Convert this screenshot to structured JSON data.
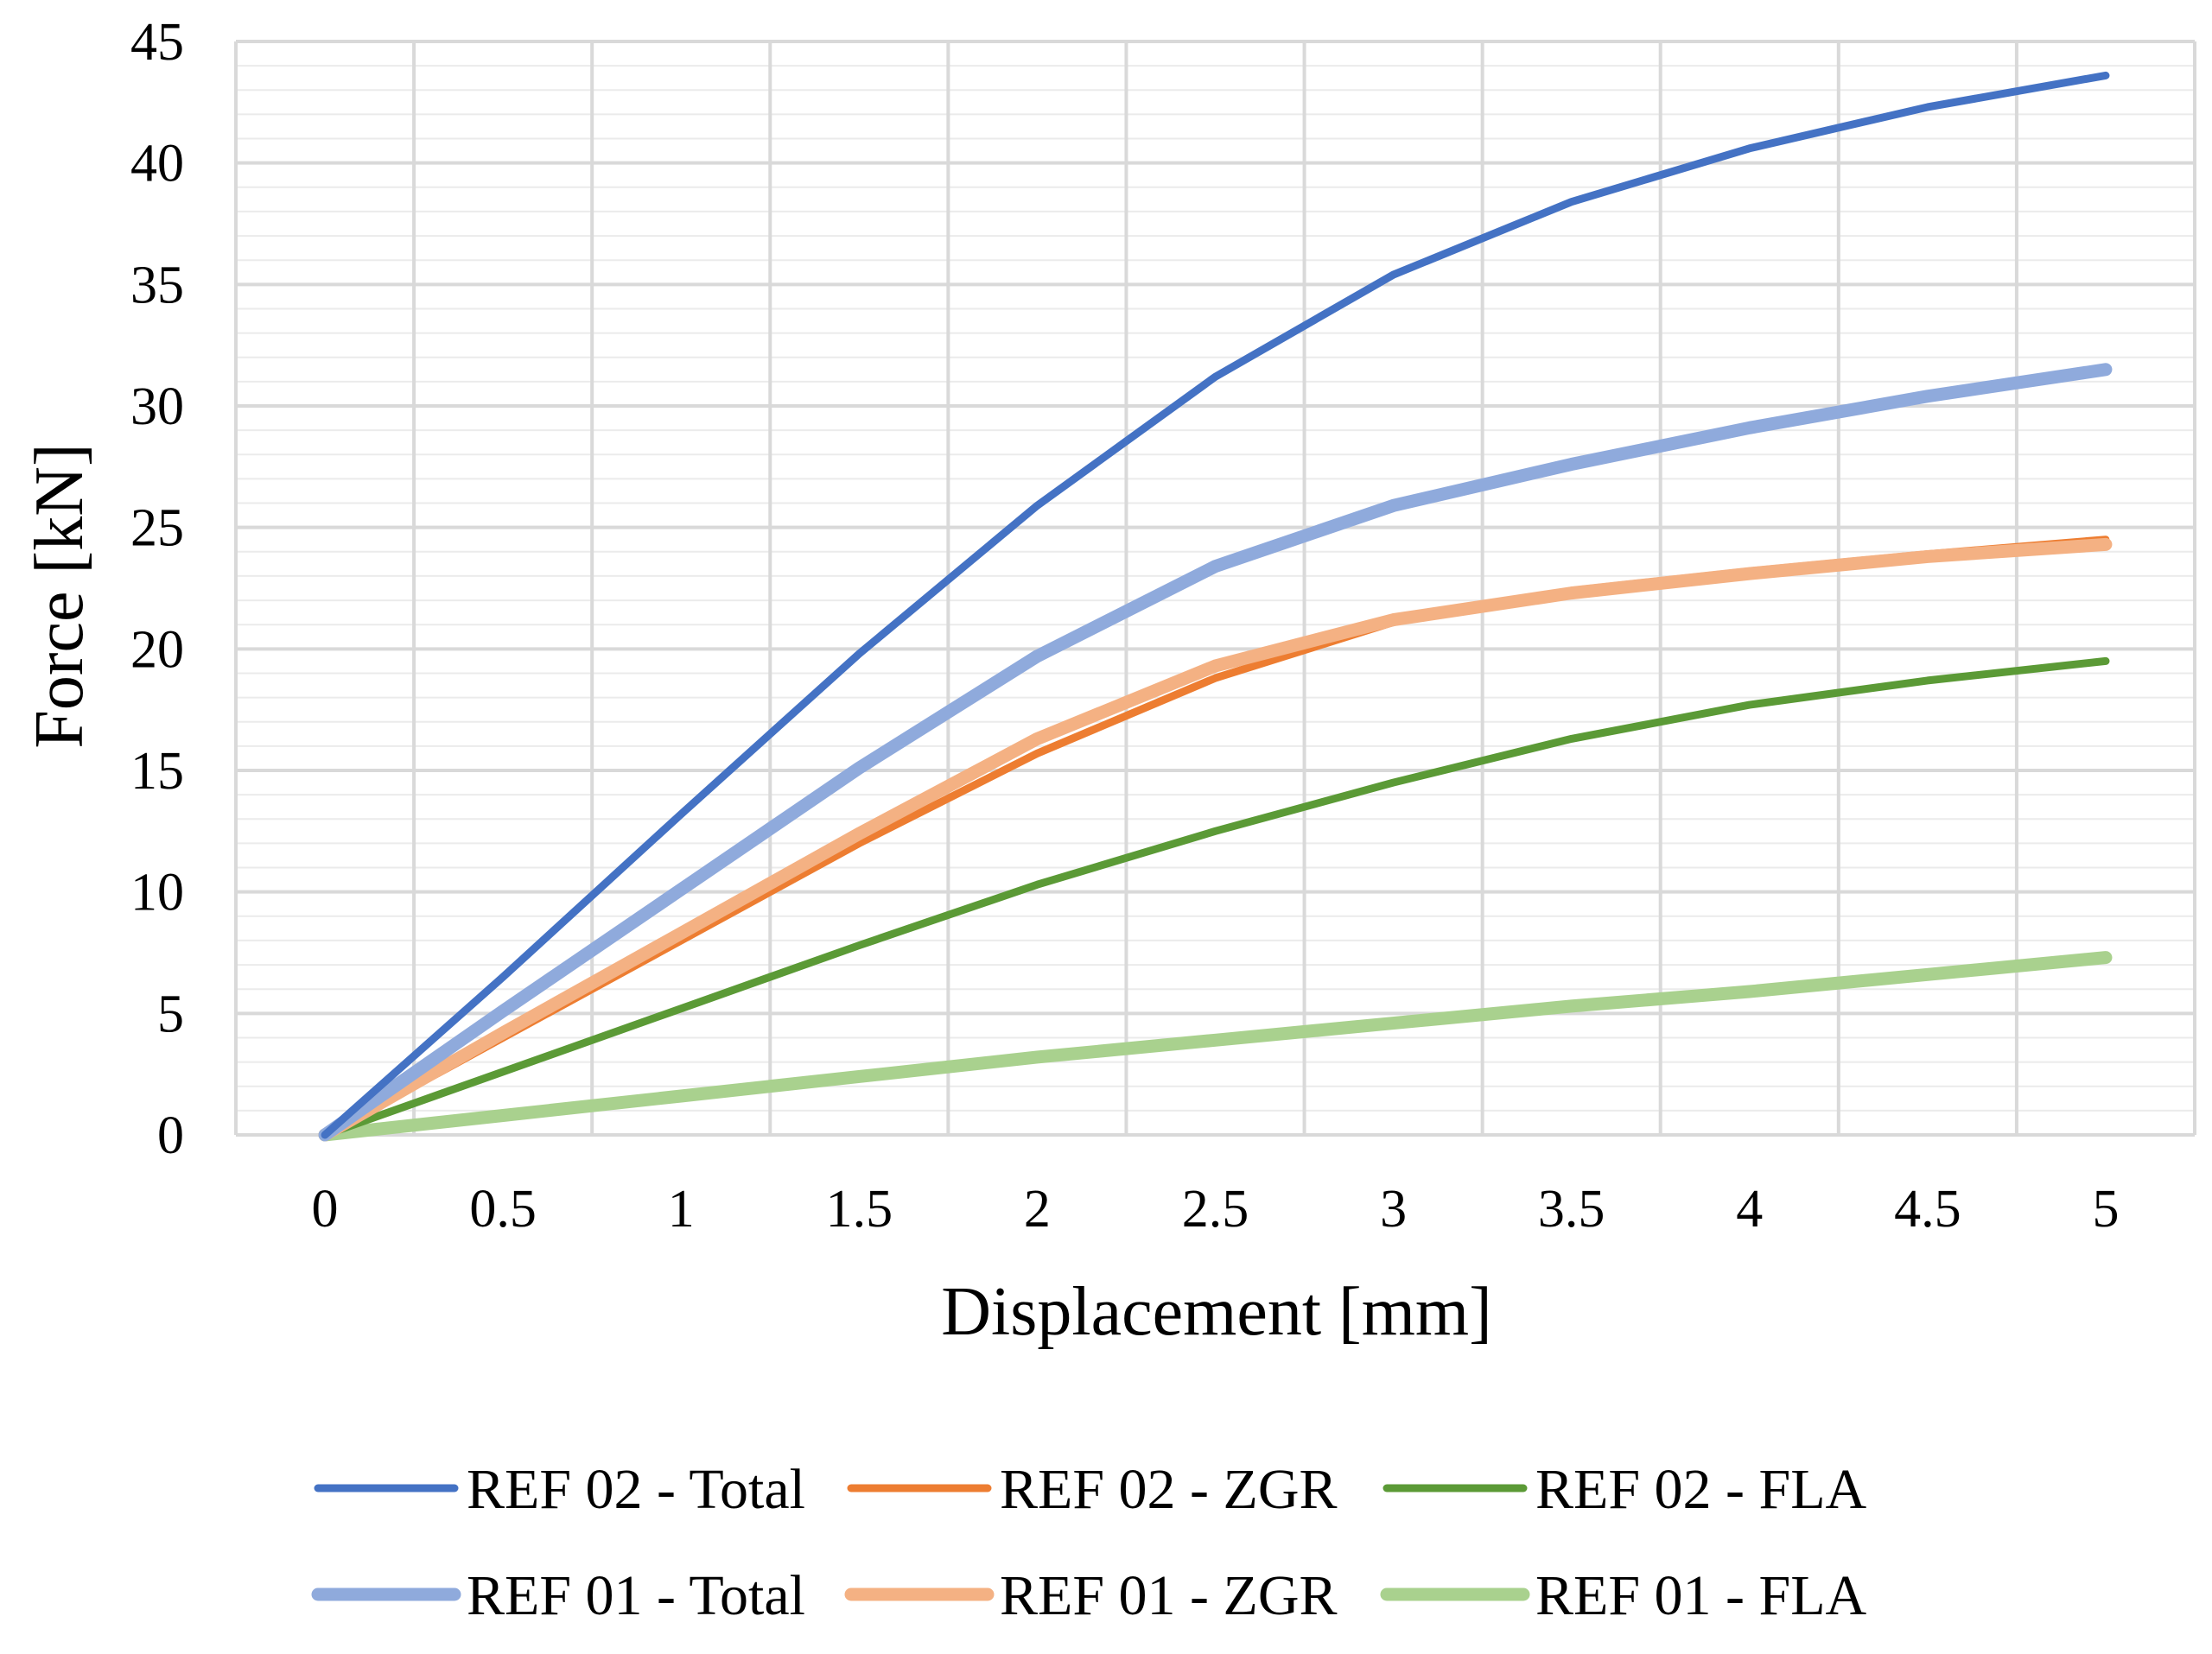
{
  "chart_data": {
    "type": "line",
    "title": "",
    "xlabel": "Displacement [mm]",
    "ylabel": "Force [kN]",
    "x": [
      0,
      0.5,
      1,
      1.5,
      2,
      2.5,
      3,
      3.5,
      4,
      4.5,
      5
    ],
    "x_tick_labels": [
      "0",
      "0.5",
      "1",
      "1.5",
      "2",
      "2.5",
      "3",
      "3.5",
      "4",
      "4.5",
      "5"
    ],
    "xlim": [
      -0.25,
      5.25
    ],
    "y_ticks": [
      0,
      5,
      10,
      15,
      20,
      25,
      30,
      35,
      40,
      45
    ],
    "y_tick_labels": [
      "0",
      "5",
      "10",
      "15",
      "20",
      "25",
      "30",
      "35",
      "40",
      "45"
    ],
    "ylim": [
      0,
      45
    ],
    "grid": true,
    "legend_position": "bottom",
    "series": [
      {
        "name": "REF 02 - Total",
        "color": "#4472C4",
        "values": [
          0,
          6.5,
          13.2,
          19.8,
          25.9,
          31.2,
          35.4,
          38.4,
          40.6,
          42.3,
          43.6
        ]
      },
      {
        "name": "REF 02 - ZGR",
        "color": "#ED7D31",
        "values": [
          0,
          4.0,
          8.0,
          12.0,
          15.7,
          18.8,
          21.1,
          22.4,
          23.2,
          23.9,
          24.5
        ]
      },
      {
        "name": "REF 02 - FLA",
        "color": "#5B9A36",
        "values": [
          0,
          2.6,
          5.2,
          7.8,
          10.3,
          12.5,
          14.5,
          16.3,
          17.7,
          18.7,
          19.5
        ]
      },
      {
        "name": "REF 01 - Total",
        "color": "#8FAADC",
        "values": [
          0,
          5.1,
          10.1,
          15.1,
          19.7,
          23.4,
          25.9,
          27.6,
          29.1,
          30.4,
          31.5
        ]
      },
      {
        "name": "REF 01 - ZGR",
        "color": "#F4B183",
        "values": [
          0,
          4.2,
          8.3,
          12.4,
          16.3,
          19.3,
          21.2,
          22.3,
          23.1,
          23.8,
          24.3
        ]
      },
      {
        "name": "REF 01 - FLA",
        "color": "#A9D18E",
        "values": [
          0,
          0.8,
          1.6,
          2.4,
          3.2,
          3.9,
          4.6,
          5.3,
          5.9,
          6.6,
          7.3
        ]
      }
    ]
  }
}
